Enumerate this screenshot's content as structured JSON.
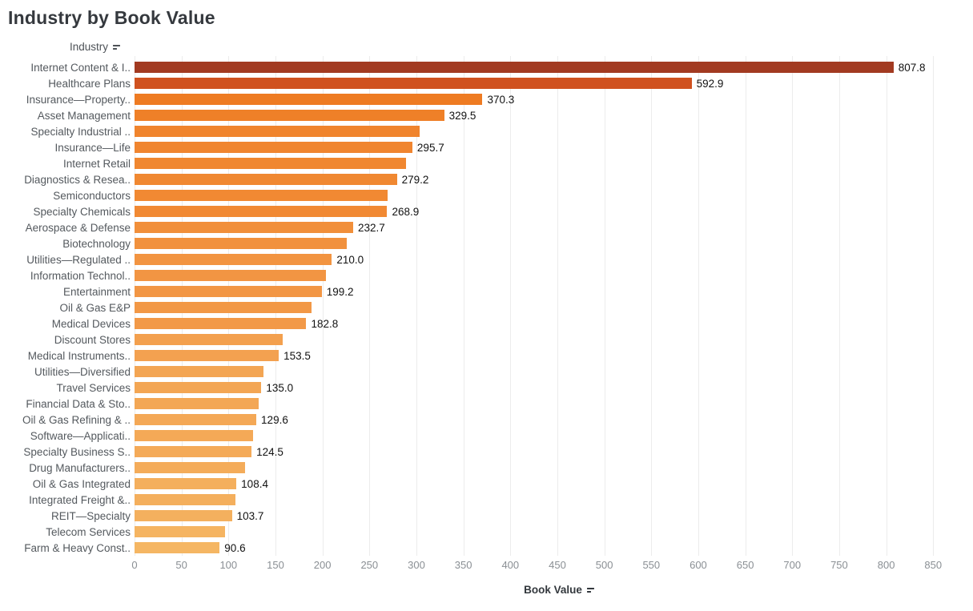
{
  "title": "Industry by Book Value",
  "column_header": "Industry",
  "x_axis": {
    "label": "Book Value",
    "ticks": [
      0,
      50,
      100,
      150,
      200,
      250,
      300,
      350,
      400,
      450,
      500,
      550,
      600,
      650,
      700,
      750,
      800,
      850
    ]
  },
  "chart_data": {
    "type": "bar",
    "orientation": "horizontal",
    "title": "Industry by Book Value",
    "xlabel": "Book Value",
    "ylabel": "Industry",
    "xlim": [
      0,
      850
    ],
    "sort": "descending",
    "grid": "vertical-light",
    "rows": [
      {
        "category": "Internet Content & I..",
        "value": 807.8,
        "label": "807.8",
        "color": "#A23A21"
      },
      {
        "category": "Healthcare Plans",
        "value": 592.9,
        "label": "592.9",
        "color": "#D0511F"
      },
      {
        "category": "Insurance—Property..",
        "value": 370.3,
        "label": "370.3",
        "color": "#EE7B22"
      },
      {
        "category": "Asset Management",
        "value": 329.5,
        "label": "329.5",
        "color": "#EF8028"
      },
      {
        "category": "Specialty Industrial ..",
        "value": 303.0,
        "label": null,
        "color": "#F0842D"
      },
      {
        "category": "Insurance—Life",
        "value": 295.7,
        "label": "295.7",
        "color": "#F0852F"
      },
      {
        "category": "Internet Retail",
        "value": 289.0,
        "label": null,
        "color": "#F08730"
      },
      {
        "category": "Diagnostics & Resea..",
        "value": 279.2,
        "label": "279.2",
        "color": "#F08831"
      },
      {
        "category": "Semiconductors",
        "value": 269.5,
        "label": null,
        "color": "#F18933"
      },
      {
        "category": "Specialty Chemicals",
        "value": 268.9,
        "label": "268.9",
        "color": "#F18933"
      },
      {
        "category": "Aerospace & Defense",
        "value": 232.7,
        "label": "232.7",
        "color": "#F18F3A"
      },
      {
        "category": "Biotechnology",
        "value": 226.0,
        "label": null,
        "color": "#F1913D"
      },
      {
        "category": "Utilities—Regulated ..",
        "value": 210.0,
        "label": "210.0",
        "color": "#F29441"
      },
      {
        "category": "Information Technol..",
        "value": 204.0,
        "label": null,
        "color": "#F29543"
      },
      {
        "category": "Entertainment",
        "value": 199.2,
        "label": "199.2",
        "color": "#F29644"
      },
      {
        "category": "Oil & Gas E&P",
        "value": 188.0,
        "label": null,
        "color": "#F29846"
      },
      {
        "category": "Medical Devices",
        "value": 182.8,
        "label": "182.8",
        "color": "#F29948"
      },
      {
        "category": "Discount Stores",
        "value": 158.0,
        "label": null,
        "color": "#F3A04E"
      },
      {
        "category": "Medical Instruments..",
        "value": 153.5,
        "label": "153.5",
        "color": "#F3A150"
      },
      {
        "category": "Utilities—Diversified",
        "value": 137.0,
        "label": null,
        "color": "#F3A553"
      },
      {
        "category": "Travel Services",
        "value": 135.0,
        "label": "135.0",
        "color": "#F3A654"
      },
      {
        "category": "Financial Data & Sto..",
        "value": 132.0,
        "label": null,
        "color": "#F3A755"
      },
      {
        "category": "Oil & Gas Refining & ..",
        "value": 129.6,
        "label": "129.6",
        "color": "#F4A856"
      },
      {
        "category": "Software—Applicati..",
        "value": 126.5,
        "label": null,
        "color": "#F4A957"
      },
      {
        "category": "Specialty Business S..",
        "value": 124.5,
        "label": "124.5",
        "color": "#F4AA58"
      },
      {
        "category": "Drug Manufacturers..",
        "value": 118.0,
        "label": null,
        "color": "#F4AC5A"
      },
      {
        "category": "Oil & Gas Integrated",
        "value": 108.4,
        "label": "108.4",
        "color": "#F4AF5D"
      },
      {
        "category": "Integrated Freight &..",
        "value": 107.5,
        "label": null,
        "color": "#F4AF5D"
      },
      {
        "category": "REIT—Specialty",
        "value": 103.7,
        "label": "103.7",
        "color": "#F4B05E"
      },
      {
        "category": "Telecom Services",
        "value": 96.0,
        "label": null,
        "color": "#F5B461"
      },
      {
        "category": "Farm & Heavy Const..",
        "value": 90.6,
        "label": "90.6",
        "color": "#F5B663"
      }
    ]
  }
}
